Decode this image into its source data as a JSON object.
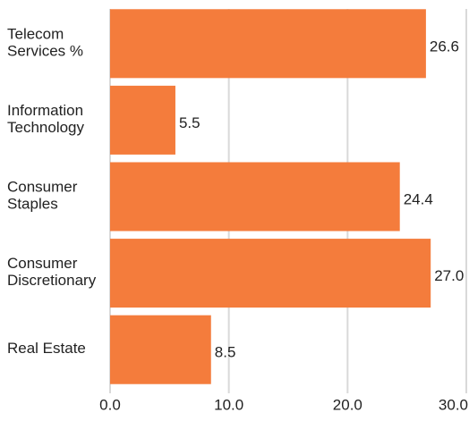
{
  "chart_data": {
    "type": "hbar",
    "categories": [
      [
        "Telecom",
        "Services %"
      ],
      [
        "Information",
        "Technology"
      ],
      [
        "Consumer",
        "Staples"
      ],
      [
        "Consumer",
        "Discretionary"
      ],
      [
        "Real Estate"
      ]
    ],
    "values": [
      26.6,
      5.5,
      24.4,
      27.0,
      8.5
    ],
    "value_labels": [
      "26.6",
      "5.5",
      "24.4",
      "27.0",
      "8.5"
    ],
    "color": "#f47c3c",
    "xlim": [
      0,
      30
    ],
    "xticks": [
      {
        "value": 0,
        "label": "0.0"
      },
      {
        "value": 10,
        "label": "10.0"
      },
      {
        "value": 20,
        "label": "20.0"
      },
      {
        "value": 30,
        "label": "30.0"
      }
    ],
    "grid": true
  }
}
